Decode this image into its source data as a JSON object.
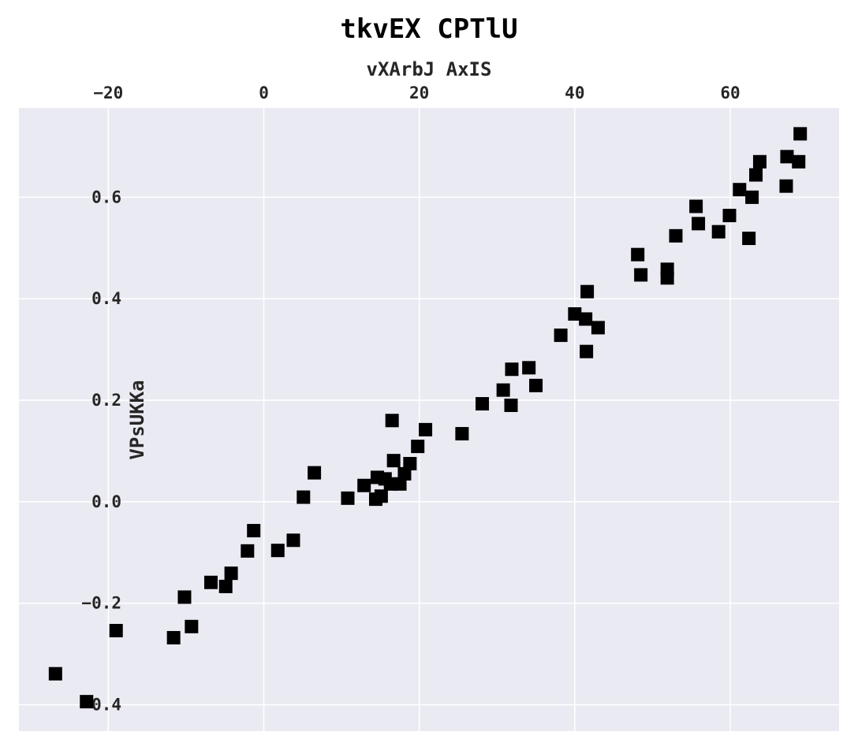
{
  "chart_data": {
    "type": "scatter",
    "title": "tkvEX  CPTlU",
    "xlabel": "vXArbJ AxIS",
    "ylabel": "VPsUKKa",
    "x_axis_position": "top",
    "grid": true,
    "legend": "none",
    "xlim": [
      -31.5,
      74
    ],
    "ylim": [
      -0.452,
      0.776
    ],
    "xticks": [
      -20,
      0,
      20,
      40,
      60
    ],
    "xtick_labels": [
      "−20",
      "0",
      "20",
      "40",
      "60"
    ],
    "yticks": [
      -0.4,
      -0.2,
      0.0,
      0.2,
      0.4,
      0.6
    ],
    "ytick_labels": [
      "−0.4",
      "−0.2",
      "0.0",
      "0.2",
      "0.4",
      "0.6"
    ],
    "colors": {
      "background": "#eaeaf2",
      "grid": "#ffffff",
      "marker": "#000000"
    },
    "marker": "square",
    "series": [
      {
        "points": [
          [
            -26.8,
            -0.339
          ],
          [
            -22.8,
            -0.394
          ],
          [
            -19.0,
            -0.254
          ],
          [
            -11.6,
            -0.268
          ],
          [
            -10.2,
            -0.188
          ],
          [
            -9.3,
            -0.246
          ],
          [
            -6.8,
            -0.159
          ],
          [
            -4.9,
            -0.167
          ],
          [
            -4.2,
            -0.141
          ],
          [
            -2.1,
            -0.097
          ],
          [
            -1.3,
            -0.057
          ],
          [
            1.8,
            -0.096
          ],
          [
            3.8,
            -0.076
          ],
          [
            5.1,
            0.009
          ],
          [
            6.5,
            0.057
          ],
          [
            10.8,
            0.007
          ],
          [
            12.9,
            0.032
          ],
          [
            14.4,
            0.005
          ],
          [
            14.6,
            0.048
          ],
          [
            15.1,
            0.011
          ],
          [
            15.6,
            0.045
          ],
          [
            16.3,
            0.035
          ],
          [
            16.5,
            0.16
          ],
          [
            16.7,
            0.081
          ],
          [
            17.5,
            0.035
          ],
          [
            18.1,
            0.055
          ],
          [
            18.8,
            0.075
          ],
          [
            19.8,
            0.109
          ],
          [
            20.8,
            0.142
          ],
          [
            25.5,
            0.134
          ],
          [
            28.1,
            0.193
          ],
          [
            30.8,
            0.22
          ],
          [
            31.8,
            0.19
          ],
          [
            31.9,
            0.261
          ],
          [
            34.1,
            0.264
          ],
          [
            35.0,
            0.229
          ],
          [
            38.2,
            0.328
          ],
          [
            40.0,
            0.37
          ],
          [
            41.4,
            0.36
          ],
          [
            41.5,
            0.296
          ],
          [
            41.6,
            0.414
          ],
          [
            43.0,
            0.343
          ],
          [
            48.1,
            0.487
          ],
          [
            48.5,
            0.447
          ],
          [
            51.9,
            0.441
          ],
          [
            51.9,
            0.458
          ],
          [
            53.0,
            0.524
          ],
          [
            55.6,
            0.582
          ],
          [
            55.9,
            0.548
          ],
          [
            58.5,
            0.532
          ],
          [
            59.9,
            0.564
          ],
          [
            61.2,
            0.615
          ],
          [
            62.4,
            0.519
          ],
          [
            62.8,
            0.6
          ],
          [
            63.3,
            0.644
          ],
          [
            63.8,
            0.67
          ],
          [
            67.2,
            0.622
          ],
          [
            67.3,
            0.68
          ],
          [
            68.8,
            0.67
          ],
          [
            69.0,
            0.725
          ]
        ]
      }
    ]
  }
}
